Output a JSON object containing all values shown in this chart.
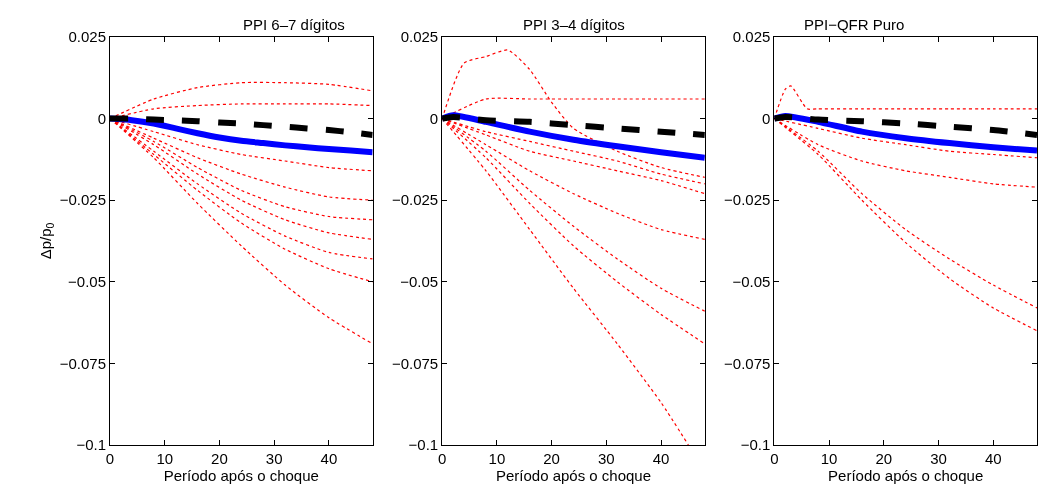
{
  "chart_data": [
    {
      "type": "line",
      "title": "PPI 6–7 dígitos",
      "xlabel": "Período após o choque",
      "ylabel": "Δp/p$_{0}$",
      "xlim": [
        0,
        48
      ],
      "xticks": [
        0,
        10,
        20,
        30,
        40
      ],
      "ylim": [
        -0.1,
        0.025
      ],
      "yticks": [
        {
          "value": -0.1,
          "label": "−0.1"
        },
        {
          "value": -0.075,
          "label": "−0.075"
        },
        {
          "value": -0.05,
          "label": "−0.05"
        },
        {
          "value": -0.025,
          "label": "−0.025"
        },
        0,
        0.025
      ],
      "series": [
        {
          "color": "#ff0000",
          "line_style": "dotted",
          "x": [
            0,
            8,
            16,
            24,
            32,
            40,
            48
          ],
          "values": [
            0,
            0.006,
            0.0095,
            0.011,
            0.011,
            0.0105,
            0.0085
          ]
        },
        {
          "color": "#ff0000",
          "line_style": "dotted",
          "x": [
            0,
            8,
            16,
            24,
            32,
            40,
            48
          ],
          "values": [
            0,
            0.003,
            0.004,
            0.0045,
            0.0045,
            0.0045,
            0.004
          ]
        },
        {
          "color": "#ff0000",
          "line_style": "dotted",
          "x": [
            0,
            8,
            16,
            24,
            32,
            40,
            48
          ],
          "values": [
            0,
            -0.004,
            -0.008,
            -0.011,
            -0.013,
            -0.015,
            -0.016
          ]
        },
        {
          "color": "#ff0000",
          "line_style": "dotted",
          "x": [
            0,
            8,
            16,
            24,
            32,
            40,
            48
          ],
          "values": [
            0,
            -0.006,
            -0.012,
            -0.017,
            -0.021,
            -0.024,
            -0.025
          ]
        },
        {
          "color": "#ff0000",
          "line_style": "dotted",
          "x": [
            0,
            8,
            16,
            24,
            32,
            40,
            48
          ],
          "values": [
            0,
            -0.007,
            -0.015,
            -0.022,
            -0.027,
            -0.03,
            -0.031
          ]
        },
        {
          "color": "#ff0000",
          "line_style": "dotted",
          "x": [
            0,
            8,
            16,
            24,
            32,
            40,
            48
          ],
          "values": [
            0,
            -0.008,
            -0.017,
            -0.025,
            -0.031,
            -0.035,
            -0.037
          ]
        },
        {
          "color": "#ff0000",
          "line_style": "dotted",
          "x": [
            0,
            8,
            16,
            24,
            32,
            40,
            48
          ],
          "values": [
            0,
            -0.01,
            -0.02,
            -0.029,
            -0.036,
            -0.041,
            -0.043
          ]
        },
        {
          "color": "#ff0000",
          "line_style": "dotted",
          "x": [
            0,
            8,
            16,
            24,
            32,
            40,
            48
          ],
          "values": [
            0,
            -0.011,
            -0.022,
            -0.032,
            -0.04,
            -0.046,
            -0.05
          ]
        },
        {
          "color": "#ff0000",
          "line_style": "dotted",
          "x": [
            0,
            8,
            16,
            24,
            32,
            40,
            48
          ],
          "values": [
            0,
            -0.012,
            -0.026,
            -0.039,
            -0.051,
            -0.061,
            -0.069
          ]
        },
        {
          "color": "#0000ff",
          "line_style": "solid",
          "x": [
            0,
            4,
            8,
            12,
            16,
            20,
            24,
            28,
            32,
            36,
            40,
            44,
            48
          ],
          "values": [
            0,
            -0.0005,
            -0.0015,
            -0.003,
            -0.0045,
            -0.0058,
            -0.0068,
            -0.0075,
            -0.0082,
            -0.0088,
            -0.0093,
            -0.0098,
            -0.0103
          ]
        },
        {
          "color": "#000000",
          "line_style": "dashed",
          "x": [
            0,
            4,
            8,
            12,
            16,
            20,
            24,
            28,
            32,
            36,
            40,
            44,
            48
          ],
          "values": [
            0,
            0,
            -0.0003,
            -0.0005,
            -0.0008,
            -0.0012,
            -0.0015,
            -0.002,
            -0.0025,
            -0.003,
            -0.0035,
            -0.0042,
            -0.005
          ]
        }
      ]
    },
    {
      "type": "line",
      "title": "PPI 3–4 dígitos",
      "xlabel": "Período após o choque",
      "xlim": [
        0,
        48
      ],
      "xticks": [
        0,
        10,
        20,
        30,
        40
      ],
      "ylim": [
        -0.1,
        0.025
      ],
      "yticks": [
        {
          "value": -0.1,
          "label": "−0.1"
        },
        {
          "value": -0.075,
          "label": "−0.075"
        },
        {
          "value": -0.05,
          "label": "−0.05"
        },
        {
          "value": -0.025,
          "label": "−0.025"
        },
        0,
        0.025
      ],
      "series": [
        {
          "color": "#ff0000",
          "line_style": "dotted",
          "x": [
            0,
            4,
            8,
            12,
            16,
            20,
            24,
            32,
            40,
            48
          ],
          "values": [
            0,
            0.017,
            0.019,
            0.021,
            0.015,
            0.005,
            -0.003,
            -0.01,
            -0.015,
            -0.018
          ]
        },
        {
          "color": "#ff0000",
          "line_style": "dotted",
          "x": [
            0,
            8,
            16,
            24,
            32,
            40,
            48
          ],
          "values": [
            0,
            0.006,
            0.006,
            0.006,
            0.006,
            0.006,
            0.006
          ]
        },
        {
          "color": "#ff0000",
          "line_style": "dotted",
          "x": [
            0,
            8,
            16,
            24,
            32,
            40,
            48
          ],
          "values": [
            0,
            -0.004,
            -0.007,
            -0.01,
            -0.013,
            -0.017,
            -0.02
          ]
        },
        {
          "color": "#ff0000",
          "line_style": "dotted",
          "x": [
            0,
            8,
            16,
            24,
            32,
            40,
            48
          ],
          "values": [
            0,
            -0.005,
            -0.01,
            -0.013,
            -0.016,
            -0.019,
            -0.023
          ]
        },
        {
          "color": "#ff0000",
          "line_style": "dotted",
          "x": [
            0,
            8,
            16,
            24,
            32,
            40,
            48
          ],
          "values": [
            0,
            -0.008,
            -0.016,
            -0.023,
            -0.029,
            -0.034,
            -0.037
          ]
        },
        {
          "color": "#ff0000",
          "line_style": "dotted",
          "x": [
            0,
            8,
            16,
            24,
            32,
            40,
            48
          ],
          "values": [
            0,
            -0.01,
            -0.022,
            -0.033,
            -0.043,
            -0.052,
            -0.059
          ]
        },
        {
          "color": "#ff0000",
          "line_style": "dotted",
          "x": [
            0,
            8,
            16,
            24,
            32,
            40,
            48
          ],
          "values": [
            0,
            -0.012,
            -0.026,
            -0.039,
            -0.05,
            -0.06,
            -0.069
          ]
        },
        {
          "color": "#ff0000",
          "line_style": "dotted",
          "x": [
            0,
            8,
            16,
            24,
            32,
            40,
            45
          ],
          "values": [
            0,
            -0.016,
            -0.034,
            -0.052,
            -0.069,
            -0.087,
            -0.1
          ]
        },
        {
          "color": "#0000ff",
          "line_style": "solid",
          "x": [
            0,
            2,
            8,
            16,
            24,
            32,
            40,
            48
          ],
          "values": [
            0,
            0.001,
            -0.001,
            -0.004,
            -0.0065,
            -0.0085,
            -0.0103,
            -0.012
          ]
        },
        {
          "color": "#000000",
          "line_style": "dashed",
          "x": [
            0,
            2,
            8,
            16,
            24,
            32,
            40,
            48
          ],
          "values": [
            0,
            0.0005,
            -0.0005,
            -0.001,
            -0.002,
            -0.003,
            -0.004,
            -0.005
          ]
        }
      ]
    },
    {
      "type": "line",
      "title": "PPI−QFR Puro",
      "xlabel": "Período após o choque",
      "xlim": [
        0,
        48
      ],
      "xticks": [
        0,
        10,
        20,
        30,
        40
      ],
      "ylim": [
        -0.1,
        0.025
      ],
      "yticks": [
        {
          "value": -0.1,
          "label": "−0.1"
        },
        {
          "value": -0.075,
          "label": "−0.075"
        },
        {
          "value": -0.05,
          "label": "−0.05"
        },
        {
          "value": -0.025,
          "label": "−0.025"
        },
        0,
        0.025
      ],
      "series": [
        {
          "color": "#ff0000",
          "line_style": "dotted",
          "x": [
            0,
            2,
            3,
            6,
            8,
            16,
            24,
            32,
            40,
            48
          ],
          "values": [
            0,
            0.009,
            0.01,
            0.003,
            0.003,
            0.003,
            0.003,
            0.003,
            0.003,
            0.003
          ]
        },
        {
          "color": "#ff0000",
          "line_style": "dotted",
          "x": [
            0,
            8,
            16,
            24,
            32,
            40,
            48
          ],
          "values": [
            0,
            -0.003,
            -0.006,
            -0.008,
            -0.01,
            -0.011,
            -0.012
          ]
        },
        {
          "color": "#ff0000",
          "line_style": "dotted",
          "x": [
            0,
            8,
            16,
            24,
            32,
            40,
            48
          ],
          "values": [
            0,
            -0.008,
            -0.013,
            -0.016,
            -0.018,
            -0.02,
            -0.021
          ]
        },
        {
          "color": "#ff0000",
          "line_style": "dotted",
          "x": [
            0,
            8,
            16,
            24,
            32,
            40,
            48
          ],
          "values": [
            0,
            -0.01,
            -0.023,
            -0.034,
            -0.043,
            -0.051,
            -0.058
          ]
        },
        {
          "color": "#ff0000",
          "line_style": "dotted",
          "x": [
            0,
            8,
            16,
            24,
            32,
            40,
            48
          ],
          "values": [
            0,
            -0.011,
            -0.025,
            -0.038,
            -0.049,
            -0.058,
            -0.065
          ]
        },
        {
          "color": "#0000ff",
          "line_style": "solid",
          "x": [
            0,
            2,
            8,
            16,
            24,
            32,
            40,
            48
          ],
          "values": [
            0,
            0.0008,
            -0.001,
            -0.004,
            -0.006,
            -0.0075,
            -0.0088,
            -0.0098
          ]
        },
        {
          "color": "#000000",
          "line_style": "dashed",
          "x": [
            0,
            2,
            8,
            16,
            24,
            32,
            40,
            48
          ],
          "values": [
            0,
            0.0005,
            -0.0003,
            -0.0008,
            -0.0015,
            -0.0025,
            -0.0035,
            -0.005
          ]
        }
      ]
    }
  ]
}
